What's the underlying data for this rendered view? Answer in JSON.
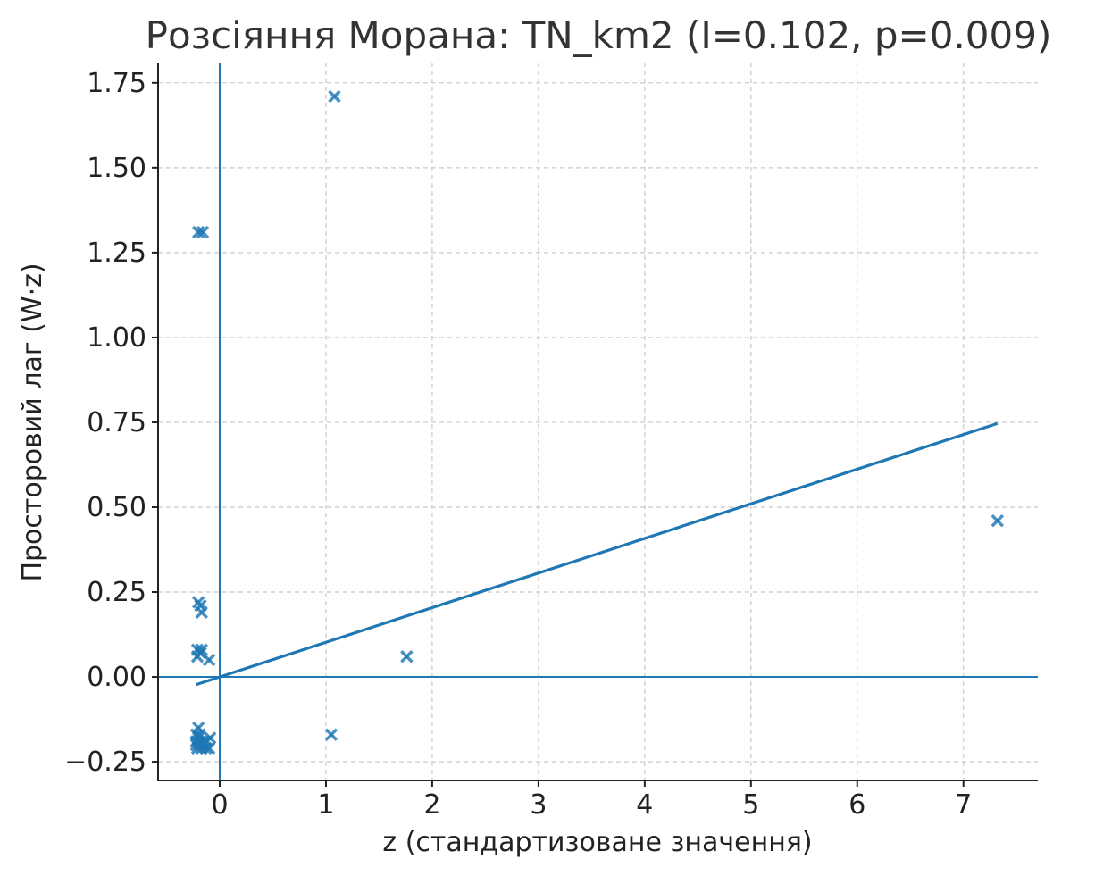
{
  "chart_data": {
    "type": "scatter",
    "title": "Розсіяння Морана: TN_km2 (I=0.102, p=0.009)",
    "xlabel": "z (стандартизоване значення)",
    "ylabel": "Просторовий лаг (W·z)",
    "xlim": [
      -0.58,
      7.7
    ],
    "ylim": [
      -0.305,
      1.81
    ],
    "xticks": [
      0,
      1,
      2,
      3,
      4,
      5,
      6,
      7
    ],
    "xtick_labels": [
      "0",
      "1",
      "2",
      "3",
      "4",
      "5",
      "6",
      "7"
    ],
    "yticks": [
      -0.25,
      0.0,
      0.25,
      0.5,
      0.75,
      1.0,
      1.25,
      1.5,
      1.75
    ],
    "ytick_labels": [
      "−0.25",
      "0.00",
      "0.25",
      "0.50",
      "0.75",
      "1.00",
      "1.25",
      "1.50",
      "1.75"
    ],
    "grid": true,
    "marker": "x",
    "colors": {
      "points": "#1f77b4",
      "line": "#1f77b4",
      "grid": "#c8c8c8"
    },
    "reference_lines": {
      "x": 0,
      "y": 0
    },
    "regression_line": {
      "slope": 0.102,
      "intercept": 0.0,
      "x_range": [
        -0.22,
        7.32
      ]
    },
    "points": [
      {
        "x": 1.08,
        "y": 1.71
      },
      {
        "x": -0.2,
        "y": 1.31
      },
      {
        "x": -0.16,
        "y": 1.31
      },
      {
        "x": 7.32,
        "y": 0.46
      },
      {
        "x": 1.76,
        "y": 0.06
      },
      {
        "x": 1.05,
        "y": -0.17
      },
      {
        "x": -0.2,
        "y": 0.22
      },
      {
        "x": -0.18,
        "y": 0.21
      },
      {
        "x": -0.17,
        "y": 0.19
      },
      {
        "x": -0.21,
        "y": 0.08
      },
      {
        "x": -0.17,
        "y": 0.08
      },
      {
        "x": -0.21,
        "y": 0.06
      },
      {
        "x": -0.18,
        "y": 0.07
      },
      {
        "x": -0.1,
        "y": 0.05
      },
      {
        "x": -0.2,
        "y": -0.15
      },
      {
        "x": -0.22,
        "y": -0.17
      },
      {
        "x": -0.2,
        "y": -0.18
      },
      {
        "x": -0.18,
        "y": -0.19
      },
      {
        "x": -0.15,
        "y": -0.19
      },
      {
        "x": -0.22,
        "y": -0.2
      },
      {
        "x": -0.19,
        "y": -0.2
      },
      {
        "x": -0.16,
        "y": -0.2
      },
      {
        "x": -0.12,
        "y": -0.19
      },
      {
        "x": -0.09,
        "y": -0.18
      },
      {
        "x": -0.21,
        "y": -0.21
      },
      {
        "x": -0.17,
        "y": -0.21
      },
      {
        "x": -0.13,
        "y": -0.21
      },
      {
        "x": -0.1,
        "y": -0.21
      },
      {
        "x": -0.22,
        "y": -0.19
      },
      {
        "x": -0.19,
        "y": -0.17
      }
    ]
  }
}
